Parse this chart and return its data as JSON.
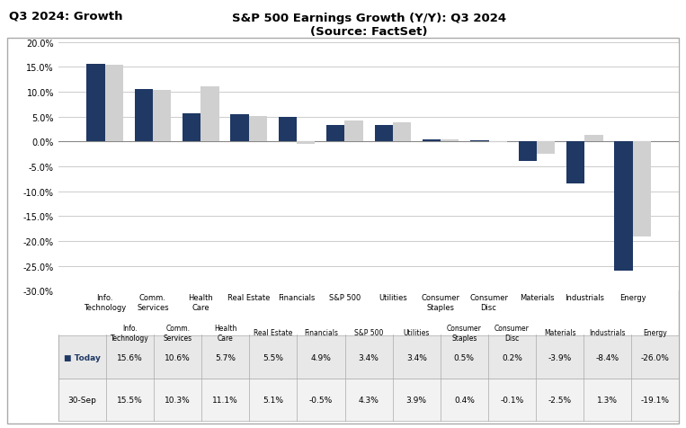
{
  "title_main": "S&P 500 Earnings Growth (Y/Y): Q3 2024",
  "title_sub": "(Source: FactSet)",
  "super_title": "Q3 2024: Growth",
  "categories": [
    "Info.\nTechnology",
    "Comm.\nServices",
    "Health\nCare",
    "Real Estate",
    "Financials",
    "S&P 500",
    "Utilities",
    "Consumer\nStaples",
    "Consumer\nDisc",
    "Materials",
    "Industrials",
    "Energy"
  ],
  "today_values": [
    15.6,
    10.6,
    5.7,
    5.5,
    4.9,
    3.4,
    3.4,
    0.5,
    0.2,
    -3.9,
    -8.4,
    -26.0
  ],
  "sep_values": [
    15.5,
    10.3,
    11.1,
    5.1,
    -0.5,
    4.3,
    3.9,
    0.4,
    -0.1,
    -2.5,
    1.3,
    -19.1
  ],
  "today_label": "Today",
  "sep_label": "30-Sep",
  "today_color": "#1f3864",
  "sep_color": "#d0d0d0",
  "ylim": [
    -30.0,
    20.0
  ],
  "yticks": [
    -30.0,
    -25.0,
    -20.0,
    -15.0,
    -10.0,
    -5.0,
    0.0,
    5.0,
    10.0,
    15.0,
    20.0
  ],
  "background_color": "#ffffff",
  "grid_color": "#cccccc",
  "table_row1_bg": "#e8e8e8",
  "table_row2_bg": "#f2f2f2",
  "table_border": "#aaaaaa"
}
